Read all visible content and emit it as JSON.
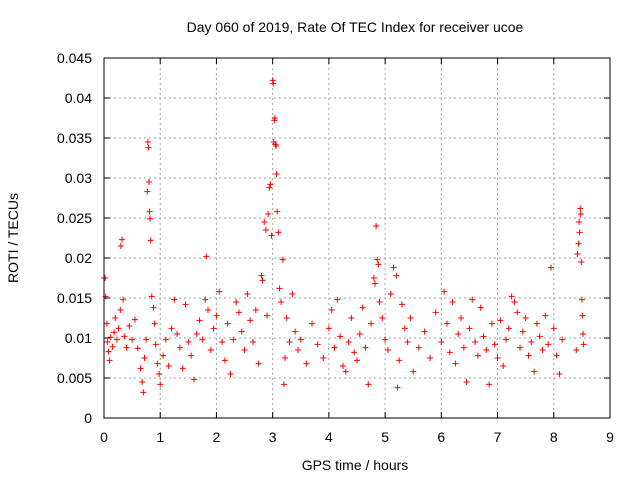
{
  "chart_data": {
    "type": "scatter",
    "title": "Day 060 of 2019, Rate Of TEC Index for receiver ucoe",
    "xlabel": "GPS time / hours",
    "ylabel": "ROTI / TECUs",
    "xlim": [
      0,
      9
    ],
    "ylim": [
      0,
      0.045
    ],
    "x_ticks": [
      "0",
      "1",
      "2",
      "3",
      "4",
      "5",
      "6",
      "7",
      "8",
      "9"
    ],
    "y_ticks": [
      "0",
      "0.005",
      "0.01",
      "0.015",
      "0.02",
      "0.025",
      "0.03",
      "0.035",
      "0.04",
      "0.045"
    ],
    "grid": true,
    "marker": "+",
    "color": "#ff0000",
    "series": [
      {
        "name": "ROTI",
        "points": [
          [
            0.0,
            0.0175
          ],
          [
            0.02,
            0.0175
          ],
          [
            0.03,
            0.0152
          ],
          [
            0.05,
            0.0118
          ],
          [
            0.06,
            0.0095
          ],
          [
            0.08,
            0.0083
          ],
          [
            0.1,
            0.0072
          ],
          [
            0.12,
            0.0101
          ],
          [
            0.15,
            0.0089
          ],
          [
            0.18,
            0.0107
          ],
          [
            0.2,
            0.0125
          ],
          [
            0.23,
            0.0098
          ],
          [
            0.26,
            0.0112
          ],
          [
            0.29,
            0.0135
          ],
          [
            0.3,
            0.0215
          ],
          [
            0.32,
            0.0223
          ],
          [
            0.34,
            0.0148
          ],
          [
            0.36,
            0.0102
          ],
          [
            0.4,
            0.0088
          ],
          [
            0.45,
            0.0115
          ],
          [
            0.5,
            0.0098
          ],
          [
            0.55,
            0.0123
          ],
          [
            0.6,
            0.0087
          ],
          [
            0.65,
            0.0062
          ],
          [
            0.68,
            0.0045
          ],
          [
            0.7,
            0.0032
          ],
          [
            0.72,
            0.0075
          ],
          [
            0.75,
            0.0098
          ],
          [
            0.77,
            0.0283
          ],
          [
            0.78,
            0.0345
          ],
          [
            0.79,
            0.0338
          ],
          [
            0.8,
            0.0295
          ],
          [
            0.81,
            0.0258
          ],
          [
            0.82,
            0.0249
          ],
          [
            0.83,
            0.0222
          ],
          [
            0.85,
            0.0152
          ],
          [
            0.88,
            0.0138
          ],
          [
            0.9,
            0.0118
          ],
          [
            0.92,
            0.0092
          ],
          [
            0.95,
            0.0068
          ],
          [
            0.98,
            0.0055
          ],
          [
            1.0,
            0.0042
          ],
          [
            1.05,
            0.0078
          ],
          [
            1.1,
            0.0098
          ],
          [
            1.15,
            0.0065
          ],
          [
            1.2,
            0.0112
          ],
          [
            1.25,
            0.0148
          ],
          [
            1.3,
            0.0105
          ],
          [
            1.35,
            0.0088
          ],
          [
            1.4,
            0.0062
          ],
          [
            1.45,
            0.0142
          ],
          [
            1.5,
            0.0095
          ],
          [
            1.55,
            0.0078
          ],
          [
            1.6,
            0.0048
          ],
          [
            1.65,
            0.0105
          ],
          [
            1.7,
            0.0122
          ],
          [
            1.75,
            0.0098
          ],
          [
            1.8,
            0.0148
          ],
          [
            1.82,
            0.0202
          ],
          [
            1.85,
            0.0135
          ],
          [
            1.9,
            0.0085
          ],
          [
            1.95,
            0.0112
          ],
          [
            2.0,
            0.0128
          ],
          [
            2.05,
            0.0158
          ],
          [
            2.1,
            0.0095
          ],
          [
            2.15,
            0.0072
          ],
          [
            2.2,
            0.0118
          ],
          [
            2.25,
            0.0055
          ],
          [
            2.3,
            0.0098
          ],
          [
            2.35,
            0.0145
          ],
          [
            2.4,
            0.0132
          ],
          [
            2.45,
            0.0108
          ],
          [
            2.5,
            0.0085
          ],
          [
            2.55,
            0.0155
          ],
          [
            2.6,
            0.0122
          ],
          [
            2.65,
            0.0095
          ],
          [
            2.7,
            0.0135
          ],
          [
            2.75,
            0.0068
          ],
          [
            2.8,
            0.0178
          ],
          [
            2.82,
            0.0172
          ],
          [
            2.85,
            0.0245
          ],
          [
            2.88,
            0.0235
          ],
          [
            2.9,
            0.0128
          ],
          [
            2.92,
            0.0255
          ],
          [
            2.94,
            0.0288
          ],
          [
            2.96,
            0.0292
          ],
          [
            2.98,
            0.0228
          ],
          [
            3.0,
            0.0422
          ],
          [
            3.01,
            0.0418
          ],
          [
            3.02,
            0.0345
          ],
          [
            3.03,
            0.0372
          ],
          [
            3.04,
            0.0375
          ],
          [
            3.05,
            0.0342
          ],
          [
            3.06,
            0.034
          ],
          [
            3.07,
            0.0305
          ],
          [
            3.08,
            0.0258
          ],
          [
            3.1,
            0.0232
          ],
          [
            3.12,
            0.0162
          ],
          [
            3.15,
            0.0145
          ],
          [
            3.18,
            0.0198
          ],
          [
            3.2,
            0.0042
          ],
          [
            3.22,
            0.0075
          ],
          [
            3.25,
            0.0125
          ],
          [
            3.3,
            0.0095
          ],
          [
            3.35,
            0.0155
          ],
          [
            3.4,
            0.0108
          ],
          [
            3.45,
            0.0085
          ],
          [
            3.5,
            0.0098
          ],
          [
            3.6,
            0.0068
          ],
          [
            3.7,
            0.0118
          ],
          [
            3.8,
            0.0092
          ],
          [
            3.9,
            0.0075
          ],
          [
            4.0,
            0.0112
          ],
          [
            4.05,
            0.0135
          ],
          [
            4.1,
            0.0088
          ],
          [
            4.15,
            0.0148
          ],
          [
            4.2,
            0.0102
          ],
          [
            4.25,
            0.0065
          ],
          [
            4.3,
            0.0058
          ],
          [
            4.35,
            0.0095
          ],
          [
            4.4,
            0.0125
          ],
          [
            4.45,
            0.0082
          ],
          [
            4.5,
            0.0072
          ],
          [
            4.55,
            0.0105
          ],
          [
            4.6,
            0.0138
          ],
          [
            4.65,
            0.0088
          ],
          [
            4.7,
            0.0042
          ],
          [
            4.75,
            0.0118
          ],
          [
            4.8,
            0.0175
          ],
          [
            4.82,
            0.0168
          ],
          [
            4.84,
            0.024
          ],
          [
            4.86,
            0.0198
          ],
          [
            4.88,
            0.0192
          ],
          [
            4.9,
            0.0145
          ],
          [
            4.95,
            0.0125
          ],
          [
            5.0,
            0.0098
          ],
          [
            5.05,
            0.0085
          ],
          [
            5.1,
            0.0155
          ],
          [
            5.15,
            0.0188
          ],
          [
            5.2,
            0.0178
          ],
          [
            5.22,
            0.0038
          ],
          [
            5.25,
            0.0072
          ],
          [
            5.3,
            0.0142
          ],
          [
            5.35,
            0.0112
          ],
          [
            5.4,
            0.0095
          ],
          [
            5.45,
            0.0125
          ],
          [
            5.5,
            0.0058
          ],
          [
            5.6,
            0.0088
          ],
          [
            5.7,
            0.0108
          ],
          [
            5.8,
            0.0075
          ],
          [
            5.9,
            0.0132
          ],
          [
            6.0,
            0.0095
          ],
          [
            6.05,
            0.0158
          ],
          [
            6.1,
            0.0118
          ],
          [
            6.15,
            0.0082
          ],
          [
            6.2,
            0.0145
          ],
          [
            6.25,
            0.0068
          ],
          [
            6.3,
            0.0105
          ],
          [
            6.35,
            0.0125
          ],
          [
            6.4,
            0.0088
          ],
          [
            6.45,
            0.0045
          ],
          [
            6.5,
            0.0112
          ],
          [
            6.55,
            0.0148
          ],
          [
            6.6,
            0.0095
          ],
          [
            6.65,
            0.0078
          ],
          [
            6.7,
            0.0138
          ],
          [
            6.75,
            0.0102
          ],
          [
            6.8,
            0.0085
          ],
          [
            6.85,
            0.0042
          ],
          [
            6.9,
            0.0118
          ],
          [
            6.95,
            0.0092
          ],
          [
            7.0,
            0.0075
          ],
          [
            7.05,
            0.0122
          ],
          [
            7.1,
            0.0065
          ],
          [
            7.15,
            0.0098
          ],
          [
            7.2,
            0.0112
          ],
          [
            7.25,
            0.0152
          ],
          [
            7.3,
            0.0145
          ],
          [
            7.35,
            0.0132
          ],
          [
            7.4,
            0.0088
          ],
          [
            7.45,
            0.0108
          ],
          [
            7.5,
            0.0125
          ],
          [
            7.55,
            0.0078
          ],
          [
            7.6,
            0.0095
          ],
          [
            7.65,
            0.0058
          ],
          [
            7.7,
            0.0118
          ],
          [
            7.75,
            0.0102
          ],
          [
            7.8,
            0.0085
          ],
          [
            7.85,
            0.0128
          ],
          [
            7.9,
            0.0092
          ],
          [
            7.95,
            0.0188
          ],
          [
            8.0,
            0.0112
          ],
          [
            8.05,
            0.0078
          ],
          [
            8.1,
            0.0055
          ],
          [
            8.15,
            0.0098
          ],
          [
            8.4,
            0.0085
          ],
          [
            8.42,
            0.0205
          ],
          [
            8.44,
            0.0218
          ],
          [
            8.45,
            0.0245
          ],
          [
            8.46,
            0.0232
          ],
          [
            8.47,
            0.0262
          ],
          [
            8.48,
            0.0255
          ],
          [
            8.49,
            0.0195
          ],
          [
            8.5,
            0.0148
          ],
          [
            8.51,
            0.0128
          ],
          [
            8.52,
            0.0105
          ],
          [
            8.53,
            0.0092
          ]
        ]
      }
    ]
  }
}
